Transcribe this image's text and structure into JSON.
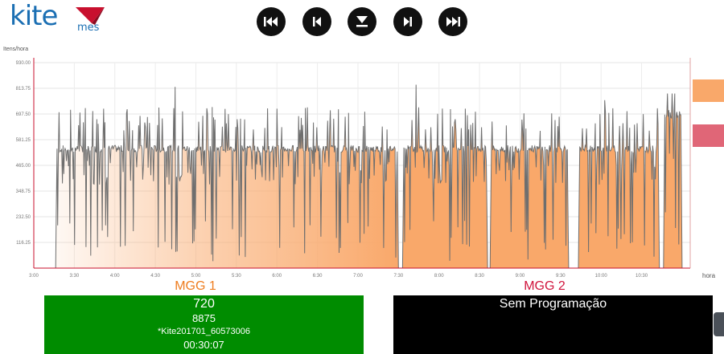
{
  "logo": {
    "name": "kite",
    "sub": "mes"
  },
  "controls": [
    {
      "name": "first-button",
      "icon": "skip-first-icon"
    },
    {
      "name": "previous-button",
      "icon": "skip-previous-icon"
    },
    {
      "name": "download-button",
      "icon": "download-icon"
    },
    {
      "name": "next-button",
      "icon": "skip-next-icon"
    },
    {
      "name": "last-button",
      "icon": "skip-last-icon"
    }
  ],
  "chart_data": {
    "type": "area",
    "ylabel": "Itens/hora",
    "xlabel": "hora",
    "ylim": [
      0,
      930
    ],
    "yticks": [
      "930.00",
      "813.75",
      "697.50",
      "581.25",
      "465.00",
      "348.75",
      "232.50",
      "116.25"
    ],
    "xlim": [
      3.0,
      11.1
    ],
    "xticks": [
      {
        "x": 3.0,
        "label": "3:00"
      },
      {
        "x": 3.5,
        "label": "3:30"
      },
      {
        "x": 4.0,
        "label": "4:00"
      },
      {
        "x": 4.5,
        "label": "4:30"
      },
      {
        "x": 5.0,
        "label": "5:00"
      },
      {
        "x": 5.5,
        "label": "5:30"
      },
      {
        "x": 6.0,
        "label": "6:00"
      },
      {
        "x": 6.5,
        "label": "6:30"
      },
      {
        "x": 7.0,
        "label": "7:00"
      },
      {
        "x": 7.5,
        "label": "7:30"
      },
      {
        "x": 8.0,
        "label": "8:00"
      },
      {
        "x": 8.5,
        "label": "8:30"
      },
      {
        "x": 9.0,
        "label": "9:00"
      },
      {
        "x": 9.5,
        "label": "9:30"
      },
      {
        "x": 10.0,
        "label": "10:00"
      },
      {
        "x": 10.5,
        "label": "10:30"
      }
    ],
    "grid": true,
    "fill_color": "#f9a86a",
    "line_color": "#6e6e6e",
    "segments": [
      {
        "x_start": 3.27,
        "x_end": 7.5,
        "typical": 540,
        "peak": 820,
        "fade": true
      },
      {
        "x_start": 7.55,
        "x_end": 8.6,
        "typical": 540,
        "peak": 830,
        "fade": false
      },
      {
        "x_start": 8.63,
        "x_end": 9.6,
        "typical": 540,
        "peak": 700,
        "fade": false
      },
      {
        "x_start": 9.72,
        "x_end": 10.72,
        "typical": 540,
        "peak": 760,
        "fade": false
      },
      {
        "x_start": 10.77,
        "x_end": 11.0,
        "typical": 700,
        "peak": 790,
        "fade": false
      }
    ],
    "legend_colors": [
      "#f9a86a",
      "#e06677"
    ]
  },
  "machines": [
    {
      "title": "MGG 1",
      "title_color": "#ee7c1e",
      "bg": "#008c00",
      "line1": "720",
      "line2": "8875",
      "line3": "*Kite201701_60573006",
      "line4": "00:30:07"
    },
    {
      "title": "MGG 2",
      "title_color": "#d0143c",
      "bg": "#000000",
      "line1": "Sem Programação",
      "line2": "",
      "line3": "",
      "line4": ""
    }
  ]
}
